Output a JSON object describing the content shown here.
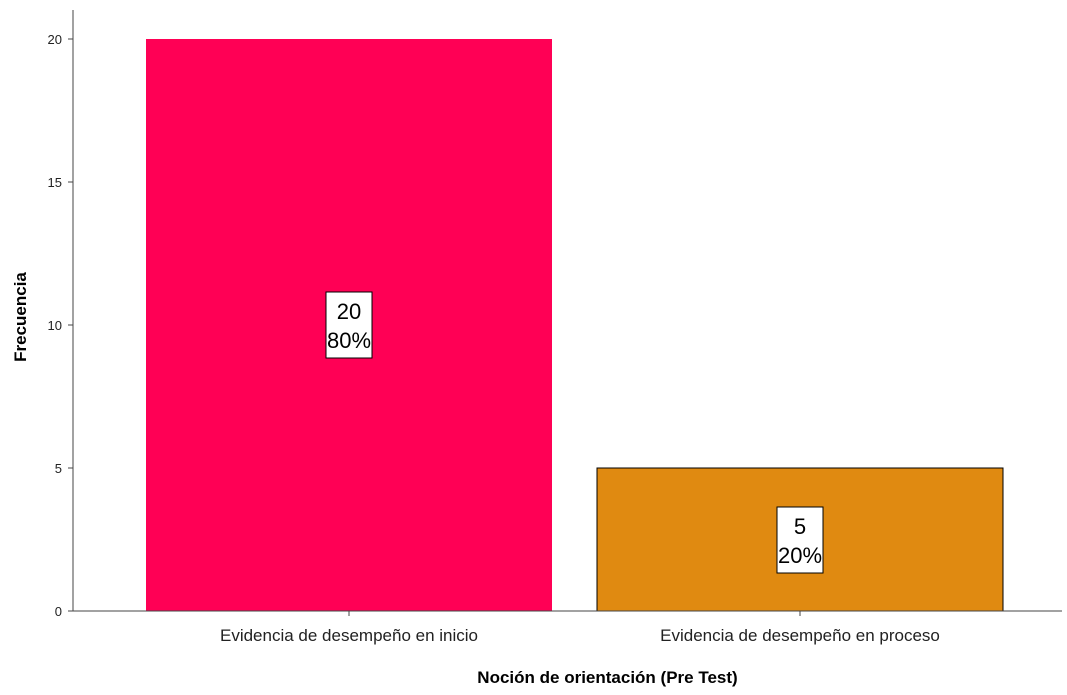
{
  "chart_data": {
    "type": "bar",
    "categories": [
      "Evidencia de desempeño en inicio",
      "Evidencia de desempeño en proceso"
    ],
    "values": [
      20,
      5
    ],
    "percentages": [
      "80%",
      "20%"
    ],
    "bar_colors": [
      "#ff0055",
      "#e08a11"
    ],
    "bar_outlines": [
      "none",
      "#000000"
    ],
    "xlabel": "Noción de orientación (Pre Test)",
    "ylabel": "Frecuencia",
    "ylim": [
      0,
      21
    ],
    "yticks": [
      0,
      5,
      10,
      15,
      20
    ],
    "grid": false,
    "legend": "none"
  }
}
